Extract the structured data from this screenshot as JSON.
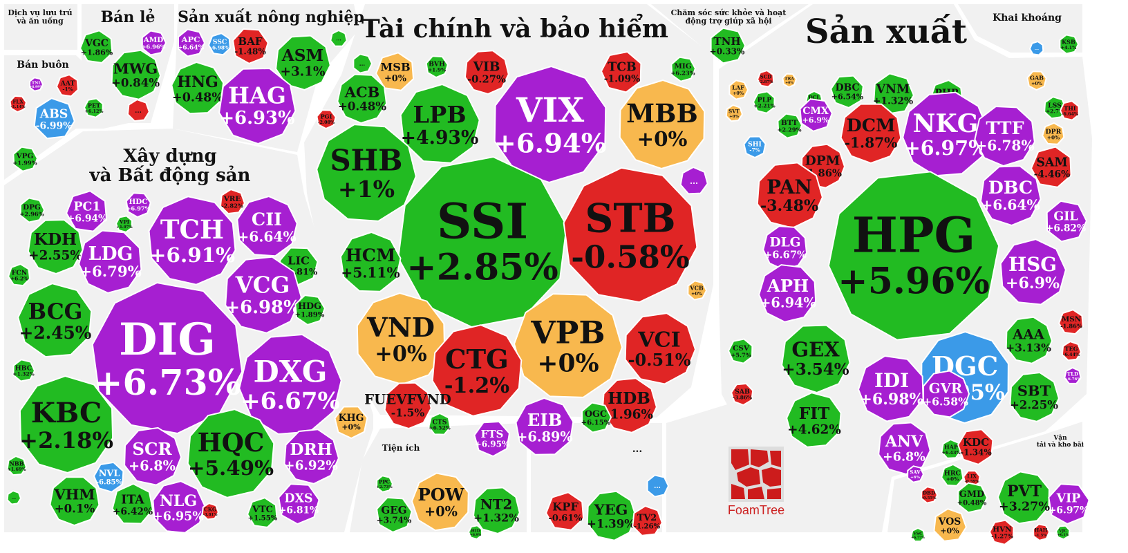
{
  "colors": {
    "up": "#22bb22",
    "down": "#e02525",
    "flat": "#f8b84e",
    "ceiling": "#a61fd1",
    "floor": "#3b9ae8",
    "border": "#ffffff"
  },
  "chart_data": {
    "type": "treemap",
    "cell_value_unit": "%",
    "groups": [
      {
        "name": "Dịch vụ lưu trú và ăn uống"
      },
      {
        "name": "Bán lẻ",
        "cells": [
          {
            "ticker": "AMD",
            "change": "+6.96%",
            "status": "ceiling"
          },
          {
            "ticker": "VGC",
            "change": "+1.86%",
            "status": "up"
          },
          {
            "ticker": "MWG",
            "change": "+0.84%",
            "status": "up"
          },
          {
            "ticker": "...",
            "change": "",
            "status": "down"
          }
        ]
      },
      {
        "name": "Bán buôn",
        "cells": [
          {
            "ticker": "TNI",
            "change": "+6.99%",
            "status": "ceiling"
          },
          {
            "ticker": "AAT",
            "change": "-1%",
            "status": "down"
          },
          {
            "ticker": "FLX",
            "change": "-1.14%",
            "status": "down"
          },
          {
            "ticker": "ABS",
            "change": "-6.99%",
            "status": "floor"
          },
          {
            "ticker": "PET",
            "change": "+6.12%",
            "status": "up"
          },
          {
            "ticker": "VPG",
            "change": "+1.99%",
            "status": "up"
          }
        ]
      },
      {
        "name": "Sản xuất nông nghiệp",
        "cells": [
          {
            "ticker": "APC",
            "change": "+6.64%",
            "status": "ceiling"
          },
          {
            "ticker": "SSC",
            "change": "-6.98%",
            "status": "floor"
          },
          {
            "ticker": "BAF",
            "change": "-1.48%",
            "status": "down"
          },
          {
            "ticker": "ASM",
            "change": "+3.1%",
            "status": "up"
          },
          {
            "ticker": "HNG",
            "change": "+0.48%",
            "status": "up"
          },
          {
            "ticker": "HAG",
            "change": "+6.93%",
            "status": "ceiling"
          },
          {
            "ticker": "...",
            "change": "",
            "status": "up"
          }
        ]
      },
      {
        "name": "Tài chính và bảo hiểm",
        "cells": [
          {
            "ticker": "...",
            "change": "",
            "status": "up"
          },
          {
            "ticker": "MSB",
            "change": "+0%",
            "status": "flat"
          },
          {
            "ticker": "BVH",
            "change": "+1.9%",
            "status": "up"
          },
          {
            "ticker": "VIB",
            "change": "-0.27%",
            "status": "down"
          },
          {
            "ticker": "TCB",
            "change": "-1.09%",
            "status": "down"
          },
          {
            "ticker": "MIG",
            "change": "+6.23%",
            "status": "up"
          },
          {
            "ticker": "ACB",
            "change": "+0.48%",
            "status": "up"
          },
          {
            "ticker": "LPB",
            "change": "+4.93%",
            "status": "up"
          },
          {
            "ticker": "VIX",
            "change": "+6.94%",
            "status": "ceiling"
          },
          {
            "ticker": "MBB",
            "change": "+0%",
            "status": "flat"
          },
          {
            "ticker": "PGI",
            "change": "-2.08%",
            "status": "down"
          },
          {
            "ticker": "SHB",
            "change": "+1%",
            "status": "up"
          },
          {
            "ticker": "SSI",
            "change": "+2.85%",
            "status": "up"
          },
          {
            "ticker": "STB",
            "change": "-0.58%",
            "status": "down"
          },
          {
            "ticker": "...",
            "change": "",
            "status": "ceiling"
          },
          {
            "ticker": "HCM",
            "change": "+5.11%",
            "status": "up"
          },
          {
            "ticker": "VCB",
            "change": "+0%",
            "status": "flat"
          },
          {
            "ticker": "VND",
            "change": "+0%",
            "status": "flat"
          },
          {
            "ticker": "VPB",
            "change": "+0%",
            "status": "flat"
          },
          {
            "ticker": "VCI",
            "change": "-0.51%",
            "status": "down"
          },
          {
            "ticker": "CTG",
            "change": "-1.2%",
            "status": "down"
          },
          {
            "ticker": "HDB",
            "change": "-1.96%",
            "status": "down"
          },
          {
            "ticker": "FUEVFVND",
            "change": "-1.5%",
            "status": "down"
          },
          {
            "ticker": "EIB",
            "change": "+6.89%",
            "status": "ceiling"
          },
          {
            "ticker": "OGC",
            "change": "+6.15%",
            "status": "up"
          },
          {
            "ticker": "CTS",
            "change": "+6.52%",
            "status": "up"
          },
          {
            "ticker": "FTS",
            "change": "+6.95%",
            "status": "ceiling"
          }
        ]
      },
      {
        "name": "Xây dựng và Bất động sản",
        "cells": [
          {
            "ticker": "DPG",
            "change": "+2.96%",
            "status": "up"
          },
          {
            "ticker": "PC1",
            "change": "+6.94%",
            "status": "ceiling"
          },
          {
            "ticker": "HDC",
            "change": "+6.97%",
            "status": "ceiling"
          },
          {
            "ticker": "VRE",
            "change": "-2.82%",
            "status": "down"
          },
          {
            "ticker": "VPI",
            "change": "+1.07%",
            "status": "up"
          },
          {
            "ticker": "KDH",
            "change": "+2.55%",
            "status": "up"
          },
          {
            "ticker": "TCH",
            "change": "+6.91%",
            "status": "ceiling"
          },
          {
            "ticker": "CII",
            "change": "+6.64%",
            "status": "ceiling"
          },
          {
            "ticker": "LDG",
            "change": "+6.79%",
            "status": "ceiling"
          },
          {
            "ticker": "FCN",
            "change": "+6.2%",
            "status": "up"
          },
          {
            "ticker": "LIC",
            "change": "+3.81%",
            "status": "up"
          },
          {
            "ticker": "VCG",
            "change": "+6.98%",
            "status": "ceiling"
          },
          {
            "ticker": "BCG",
            "change": "+2.45%",
            "status": "up"
          },
          {
            "ticker": "HDG",
            "change": "+1.89%",
            "status": "up"
          },
          {
            "ticker": "DIG",
            "change": "+6.73%",
            "status": "ceiling"
          },
          {
            "ticker": "DXG",
            "change": "+6.67%",
            "status": "ceiling"
          },
          {
            "ticker": "HBC",
            "change": "+1.32%",
            "status": "up"
          },
          {
            "ticker": "KBC",
            "change": "+2.18%",
            "status": "up"
          },
          {
            "ticker": "KHG",
            "change": "+0%",
            "status": "flat"
          },
          {
            "ticker": "SCR",
            "change": "+6.8%",
            "status": "ceiling"
          },
          {
            "ticker": "HQC",
            "change": "+5.49%",
            "status": "up"
          },
          {
            "ticker": "DRH",
            "change": "+6.92%",
            "status": "ceiling"
          },
          {
            "ticker": "NBB",
            "change": "+1.69%",
            "status": "up"
          },
          {
            "ticker": "NVL",
            "change": "-6.85%",
            "status": "floor"
          },
          {
            "ticker": "VHM",
            "change": "+0.1%",
            "status": "up"
          },
          {
            "ticker": "ITA",
            "change": "+6.42%",
            "status": "up"
          },
          {
            "ticker": "NLG",
            "change": "+6.95%",
            "status": "ceiling"
          },
          {
            "ticker": "CKG",
            "change": "-3.81%",
            "status": "down"
          },
          {
            "ticker": "VTC",
            "change": "+1.55%",
            "status": "up"
          },
          {
            "ticker": "DXS",
            "change": "+6.81%",
            "status": "ceiling"
          },
          {
            "ticker": "...",
            "change": "",
            "status": "up"
          }
        ]
      },
      {
        "name": "Chăm sóc sức khỏe và hoạt động trợ giúp xã hội",
        "cells": [
          {
            "ticker": "TNH",
            "change": "+0.33%",
            "status": "up"
          }
        ]
      },
      {
        "name": "Sản xuất",
        "cells": [
          {
            "ticker": "LAF",
            "change": "+0%",
            "status": "flat"
          },
          {
            "ticker": "SCD",
            "change": "-2.87%",
            "status": "down"
          },
          {
            "ticker": "TRA",
            "change": "+0%",
            "status": "flat"
          },
          {
            "ticker": "SVT",
            "change": "+0%",
            "status": "flat"
          },
          {
            "ticker": "PLP",
            "change": "+2.21%",
            "status": "up"
          },
          {
            "ticker": "BTT",
            "change": "+2.29%",
            "status": "up"
          },
          {
            "ticker": "DCL",
            "change": "+0%",
            "status": "up"
          },
          {
            "ticker": "DBC",
            "change": "+6.54%",
            "status": "up"
          },
          {
            "ticker": "VNM",
            "change": "+1.32%",
            "status": "up"
          },
          {
            "ticker": "PHR",
            "change": "+2.11%",
            "status": "up"
          },
          {
            "ticker": "GAB",
            "change": "+0%",
            "status": "flat"
          },
          {
            "ticker": "LSS",
            "change": "+2.7%",
            "status": "up"
          },
          {
            "ticker": "THI",
            "change": "-6.64%",
            "status": "down"
          },
          {
            "ticker": "CMX",
            "change": "+6.9%",
            "status": "ceiling"
          },
          {
            "ticker": "DCM",
            "change": "-1.87%",
            "status": "down"
          },
          {
            "ticker": "NKG",
            "change": "+6.97%",
            "status": "ceiling"
          },
          {
            "ticker": "TTF",
            "change": "+6.78%",
            "status": "ceiling"
          },
          {
            "ticker": "DPR",
            "change": "+0%",
            "status": "flat"
          },
          {
            "ticker": "SHI",
            "change": "-7%",
            "status": "floor"
          },
          {
            "ticker": "DPM",
            "change": "-1.86%",
            "status": "down"
          },
          {
            "ticker": "SAM",
            "change": "-4.46%",
            "status": "down"
          },
          {
            "ticker": "PAN",
            "change": "-3.48%",
            "status": "down"
          },
          {
            "ticker": "DBC",
            "change": "+6.64%",
            "status": "ceiling"
          },
          {
            "ticker": "HPG",
            "change": "+5.96%",
            "status": "up"
          },
          {
            "ticker": "GIL",
            "change": "+6.82%",
            "status": "ceiling"
          },
          {
            "ticker": "DLG",
            "change": "+6.67%",
            "status": "ceiling"
          },
          {
            "ticker": "HSG",
            "change": "+6.9%",
            "status": "ceiling"
          },
          {
            "ticker": "APH",
            "change": "+6.94%",
            "status": "ceiling"
          },
          {
            "ticker": "MSN",
            "change": "-1.86%",
            "status": "down"
          },
          {
            "ticker": "AAA",
            "change": "+3.13%",
            "status": "up"
          },
          {
            "ticker": "TEG",
            "change": "-6.44%",
            "status": "down"
          },
          {
            "ticker": "CSV",
            "change": "+5.7%",
            "status": "up"
          },
          {
            "ticker": "GEX",
            "change": "+3.54%",
            "status": "up"
          },
          {
            "ticker": "TLD",
            "change": "+6.76%",
            "status": "ceiling"
          },
          {
            "ticker": "SAB",
            "change": "-3.86%",
            "status": "down"
          },
          {
            "ticker": "DGC",
            "change": "-6.95%",
            "status": "floor"
          },
          {
            "ticker": "IDI",
            "change": "+6.98%",
            "status": "ceiling"
          },
          {
            "ticker": "GVR",
            "change": "+6.58%",
            "status": "ceiling"
          },
          {
            "ticker": "SBT",
            "change": "+2.25%",
            "status": "up"
          },
          {
            "ticker": "FIT",
            "change": "+4.62%",
            "status": "up"
          },
          {
            "ticker": "ANV",
            "change": "+6.8%",
            "status": "ceiling"
          },
          {
            "ticker": "HAP",
            "change": "+6.43%",
            "status": "up"
          },
          {
            "ticker": "KDC",
            "change": "-1.34%",
            "status": "down"
          },
          {
            "ticker": "SAV",
            "change": "+6%",
            "status": "ceiling"
          },
          {
            "ticker": "HRC",
            "change": "+0%",
            "status": "up"
          },
          {
            "ticker": "LIX",
            "change": "-0.59%",
            "status": "down"
          },
          {
            "ticker": "DBD",
            "change": "-0.55%",
            "status": "down"
          }
        ]
      },
      {
        "name": "Khai khoáng",
        "cells": [
          {
            "ticker": "KSB",
            "change": "+4.1%",
            "status": "up"
          },
          {
            "ticker": "...",
            "change": "",
            "status": "floor"
          }
        ]
      },
      {
        "name": "Tiện ích",
        "cells": [
          {
            "ticker": "PPC",
            "change": "+2.73%",
            "status": "up"
          },
          {
            "ticker": "POW",
            "change": "+0%",
            "status": "flat"
          },
          {
            "ticker": "GEG",
            "change": "+3.74%",
            "status": "up"
          },
          {
            "ticker": "NT2",
            "change": "+1.32%",
            "status": "up"
          },
          {
            "ticker": "HID",
            "change": "+6.9%",
            "status": "up"
          }
        ]
      },
      {
        "name": "...",
        "cells": [
          {
            "ticker": "...",
            "change": "",
            "status": "floor"
          },
          {
            "ticker": "KPF",
            "change": "-0.61%",
            "status": "down"
          },
          {
            "ticker": "YEG",
            "change": "+1.39%",
            "status": "up"
          },
          {
            "ticker": "TV2",
            "change": "-1.26%",
            "status": "down"
          }
        ]
      },
      {
        "name": "Vận tải và kho bãi",
        "cells": [
          {
            "ticker": "GMD",
            "change": "+0.48%",
            "status": "up"
          },
          {
            "ticker": "PVT",
            "change": "+3.27%",
            "status": "up"
          },
          {
            "ticker": "VIP",
            "change": "+6.97%",
            "status": "ceiling"
          },
          {
            "ticker": "VOS",
            "change": "+0%",
            "status": "flat"
          },
          {
            "ticker": "HVN",
            "change": "-1.27%",
            "status": "down"
          },
          {
            "ticker": "HAH",
            "change": "-1.5%",
            "status": "down"
          },
          {
            "ticker": "VSC",
            "change": "+6.77%",
            "status": "up"
          },
          {
            "ticker": "VJC",
            "change": "+0.1%",
            "status": "up"
          }
        ]
      }
    ]
  },
  "watermark": {
    "text": "FoamTree"
  }
}
